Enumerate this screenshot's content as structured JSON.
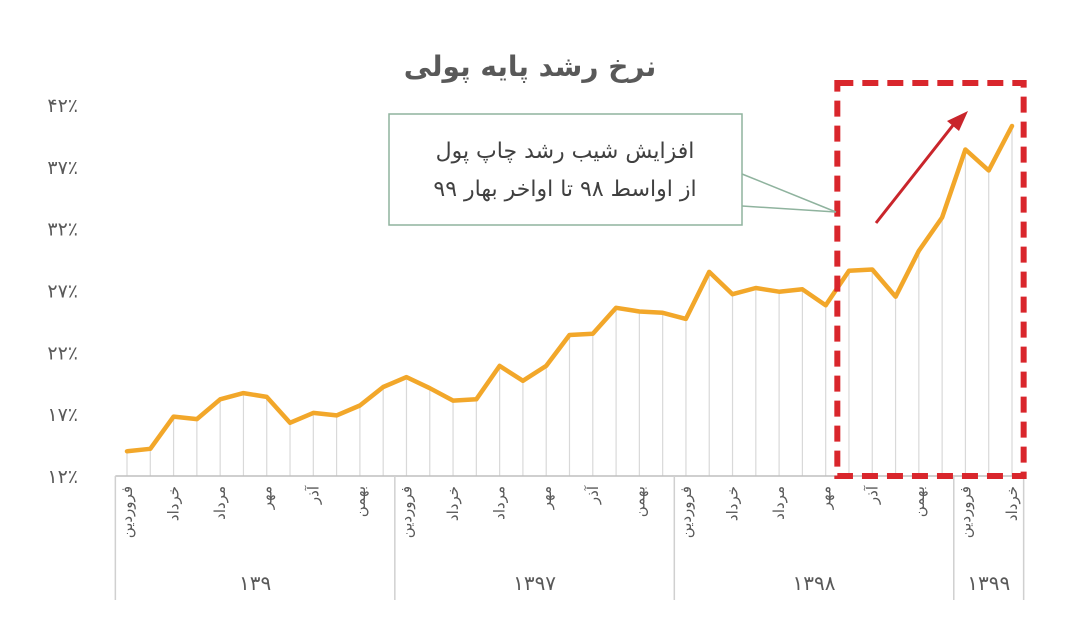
{
  "chart_data": {
    "type": "line",
    "title": "نرخ رشد پایه پولی",
    "ylim": [
      12,
      42
    ],
    "yticks": [
      "۱۲٪",
      "۱۷٪",
      "۲۲٪",
      "۲۷٪",
      "۳۲٪",
      "۳۷٪",
      "۴۲٪"
    ],
    "ytick_values": [
      12,
      17,
      22,
      27,
      32,
      37,
      42
    ],
    "xtick_labels": [
      {
        "index": 0,
        "label": "فروردین"
      },
      {
        "index": 2,
        "label": "خرداد"
      },
      {
        "index": 4,
        "label": "مرداد"
      },
      {
        "index": 6,
        "label": "مهر"
      },
      {
        "index": 8,
        "label": "آذر"
      },
      {
        "index": 10,
        "label": "بهمن"
      },
      {
        "index": 12,
        "label": "فروردین"
      },
      {
        "index": 14,
        "label": "خرداد"
      },
      {
        "index": 16,
        "label": "مرداد"
      },
      {
        "index": 18,
        "label": "مهر"
      },
      {
        "index": 20,
        "label": "آذر"
      },
      {
        "index": 22,
        "label": "بهمن"
      },
      {
        "index": 24,
        "label": "فروردین"
      },
      {
        "index": 26,
        "label": "خرداد"
      },
      {
        "index": 28,
        "label": "مرداد"
      },
      {
        "index": 30,
        "label": "مهر"
      },
      {
        "index": 32,
        "label": "آذر"
      },
      {
        "index": 34,
        "label": "بهمن"
      },
      {
        "index": 36,
        "label": "فروردین"
      },
      {
        "index": 38,
        "label": "خرداد"
      }
    ],
    "year_groups": [
      {
        "label": "۱۳۹",
        "start": 0,
        "end": 11
      },
      {
        "label": "۱۳۹۷",
        "start": 12,
        "end": 23
      },
      {
        "label": "۱۳۹۸",
        "start": 24,
        "end": 35
      },
      {
        "label": "۱۳۹۹",
        "start": 36,
        "end": 38
      }
    ],
    "series": [
      {
        "values": [
          14.0,
          14.2,
          16.8,
          16.6,
          18.2,
          18.7,
          18.4,
          16.3,
          17.1,
          16.9,
          17.7,
          19.2,
          20.0,
          19.1,
          18.1,
          18.2,
          20.9,
          19.7,
          20.9,
          23.4,
          23.5,
          25.6,
          25.3,
          25.2,
          24.7,
          28.5,
          26.7,
          27.2,
          26.9,
          27.1,
          25.8,
          28.6,
          28.7,
          26.5,
          30.2,
          32.9,
          38.4,
          36.7,
          40.3
        ],
        "color": "#F2A72A"
      }
    ],
    "annotation": {
      "lines": [
        "افزایش شیب رشد چاپ پول",
        "از اواسط ۹۸ تا اواخر بهار ۹۹"
      ],
      "highlight_range": {
        "start_index": 30.5,
        "end_index": 38.5
      },
      "highlight_color": "#D9262C",
      "arrow_color": "#C9252B"
    },
    "grid": false,
    "legend": "none"
  }
}
